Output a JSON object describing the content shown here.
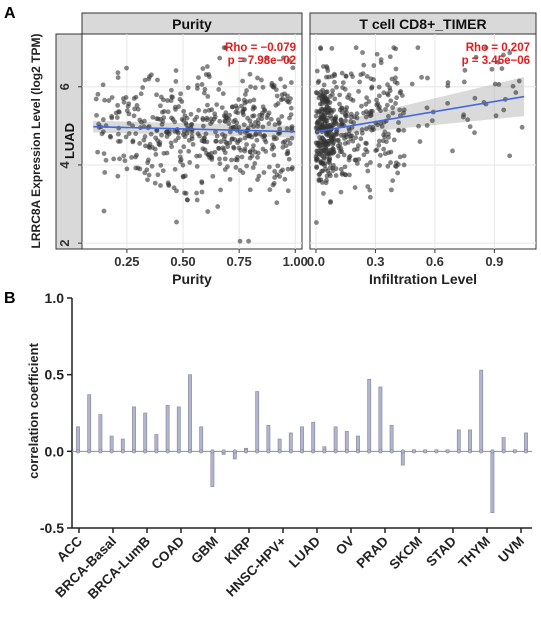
{
  "panels": {
    "a_label": "A",
    "b_label": "B"
  },
  "chart_data": [
    {
      "type": "scatter",
      "facet_title": "Purity",
      "row_label": "LUAD",
      "ylabel": "LRRC8A Expression Level (log2 TPM)",
      "xlabel": "Purity",
      "x_ticks": [
        "0.25",
        "0.50",
        "0.75",
        "1.00"
      ],
      "y_ticks": [
        "2",
        "4",
        "6"
      ],
      "xlim": [
        0.05,
        1.03
      ],
      "ylim": [
        1.85,
        7.35
      ],
      "rho_text": "Rho = −0.079",
      "p_text": "p = 7.98e−02",
      "fit": {
        "x": [
          0.1,
          1.0
        ],
        "y": [
          4.98,
          4.85
        ]
      },
      "band": {
        "lower": [
          4.83,
          4.7
        ],
        "upper": [
          5.13,
          5.0
        ]
      },
      "n_points": 510,
      "x_range": [
        0.1,
        0.99
      ],
      "colors": {
        "points": "#333333",
        "fit": "#4169e1",
        "band": "#bbbbbb",
        "stats": "#e41a1c"
      }
    },
    {
      "type": "scatter",
      "facet_title": "T cell CD8+_TIMER",
      "xlabel": "Infiltration Level",
      "x_ticks": [
        "0.0",
        "0.3",
        "0.6",
        "0.9"
      ],
      "xlim": [
        -0.03,
        1.11
      ],
      "ylim": [
        1.85,
        7.35
      ],
      "rho_text": "Rho = 0.207",
      "p_text": "p = 3.45e−06",
      "fit": {
        "x": [
          0.0,
          1.05
        ],
        "y": [
          4.85,
          5.75
        ]
      },
      "band": {
        "lower": [
          4.72,
          5.25
        ],
        "upper": [
          4.98,
          6.25
        ]
      },
      "n_points": 510,
      "x_range": [
        0.0,
        1.05
      ],
      "colors": {
        "points": "#333333",
        "fit": "#4169e1",
        "band": "#bbbbbb",
        "stats": "#e41a1c"
      }
    },
    {
      "type": "bar",
      "ylabel": "correlation coefficient",
      "y_ticks": [
        "-0.5",
        "0.0",
        "0.5",
        "1.0"
      ],
      "ylim": [
        -0.5,
        1.0
      ],
      "category_labels": [
        "ACC",
        "BRCA-Basal",
        "BRCA-LumB",
        "COAD",
        "GBM",
        "KIRP",
        "HNSC-HPV+",
        "LUAD",
        "OV",
        "PRAD",
        "SKCM",
        "STAD",
        "THYM",
        "UVM"
      ],
      "values": [
        0.16,
        0.37,
        0.24,
        0.1,
        0.08,
        0.29,
        0.25,
        0.11,
        0.3,
        0.29,
        0.5,
        0.16,
        -0.23,
        -0.02,
        -0.05,
        0.02,
        0.39,
        0.17,
        0.08,
        0.12,
        0.16,
        0.19,
        0.03,
        0.16,
        0.13,
        0.1,
        0.47,
        0.42,
        0.17,
        -0.09,
        0.01,
        0.01,
        0.01,
        0.01,
        0.14,
        0.14,
        0.53,
        -0.4,
        0.09,
        0.01,
        0.12
      ],
      "colors": {
        "bar": "#b3b5cc",
        "bar_stroke": "#7f829f"
      }
    }
  ]
}
